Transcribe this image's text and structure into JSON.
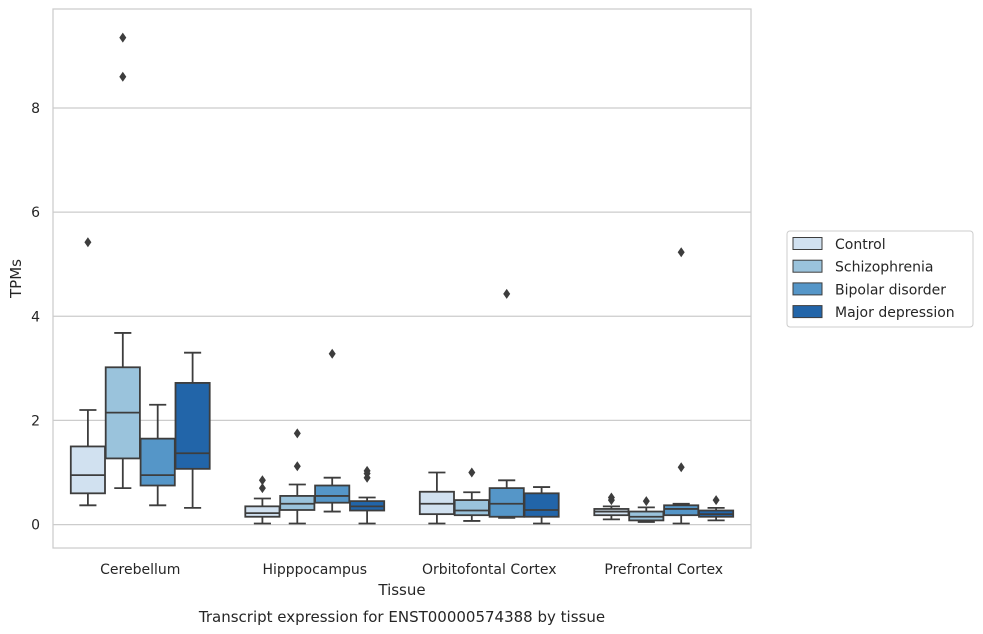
{
  "chart_data": {
    "type": "box",
    "title": "",
    "caption": "Transcript expression for ENST00000574388 by tissue",
    "xlabel": "Tissue",
    "ylabel": "TPMs",
    "ylim": [
      -0.45,
      9.9
    ],
    "yticks": [
      0,
      2,
      4,
      6,
      8
    ],
    "grid": "horizontal",
    "legend_position": "right",
    "categories": [
      "Cerebellum",
      "Hipppocampus",
      "Orbitofontal Cortex",
      "Prefrontal Cortex"
    ],
    "series": [
      {
        "name": "Control",
        "color": "#d1e1f0",
        "boxes": [
          {
            "whislo": 0.37,
            "q1": 0.6,
            "med": 0.95,
            "q3": 1.5,
            "whishi": 2.2,
            "fliers": [
              5.42
            ]
          },
          {
            "whislo": 0.02,
            "q1": 0.15,
            "med": 0.22,
            "q3": 0.35,
            "whishi": 0.5,
            "fliers": [
              0.7,
              0.85
            ]
          },
          {
            "whislo": 0.02,
            "q1": 0.2,
            "med": 0.4,
            "q3": 0.63,
            "whishi": 1.0,
            "fliers": []
          },
          {
            "whislo": 0.1,
            "q1": 0.18,
            "med": 0.25,
            "q3": 0.3,
            "whishi": 0.35,
            "fliers": [
              0.47,
              0.52
            ]
          }
        ]
      },
      {
        "name": "Schizophrenia",
        "color": "#9ac3dc",
        "boxes": [
          {
            "whislo": 0.7,
            "q1": 1.27,
            "med": 2.15,
            "q3": 3.02,
            "whishi": 3.68,
            "fliers": [
              9.35,
              8.6
            ]
          },
          {
            "whislo": 0.02,
            "q1": 0.28,
            "med": 0.4,
            "q3": 0.55,
            "whishi": 0.77,
            "fliers": [
              1.12,
              1.75
            ]
          },
          {
            "whislo": 0.07,
            "q1": 0.18,
            "med": 0.27,
            "q3": 0.47,
            "whishi": 0.62,
            "fliers": [
              1.0
            ]
          },
          {
            "whislo": 0.05,
            "q1": 0.08,
            "med": 0.15,
            "q3": 0.25,
            "whishi": 0.33,
            "fliers": [
              0.45
            ]
          }
        ]
      },
      {
        "name": "Bipolar disorder",
        "color": "#5596c8",
        "boxes": [
          {
            "whislo": 0.37,
            "q1": 0.75,
            "med": 0.95,
            "q3": 1.65,
            "whishi": 2.3,
            "fliers": []
          },
          {
            "whislo": 0.25,
            "q1": 0.42,
            "med": 0.55,
            "q3": 0.75,
            "whishi": 0.9,
            "fliers": [
              3.28
            ]
          },
          {
            "whislo": 0.13,
            "q1": 0.15,
            "med": 0.4,
            "q3": 0.7,
            "whishi": 0.85,
            "fliers": [
              4.43
            ]
          },
          {
            "whislo": 0.02,
            "q1": 0.18,
            "med": 0.3,
            "q3": 0.37,
            "whishi": 0.4,
            "fliers": [
              1.1,
              5.23
            ]
          }
        ]
      },
      {
        "name": "Major depression",
        "color": "#2265a9",
        "boxes": [
          {
            "whislo": 0.32,
            "q1": 1.07,
            "med": 1.37,
            "q3": 2.72,
            "whishi": 3.3,
            "fliers": []
          },
          {
            "whislo": 0.02,
            "q1": 0.27,
            "med": 0.35,
            "q3": 0.45,
            "whishi": 0.52,
            "fliers": [
              0.9,
              0.98,
              1.03
            ]
          },
          {
            "whislo": 0.02,
            "q1": 0.15,
            "med": 0.28,
            "q3": 0.6,
            "whishi": 0.72,
            "fliers": []
          },
          {
            "whislo": 0.08,
            "q1": 0.15,
            "med": 0.2,
            "q3": 0.27,
            "whishi": 0.32,
            "fliers": [
              0.47
            ]
          }
        ]
      }
    ]
  }
}
